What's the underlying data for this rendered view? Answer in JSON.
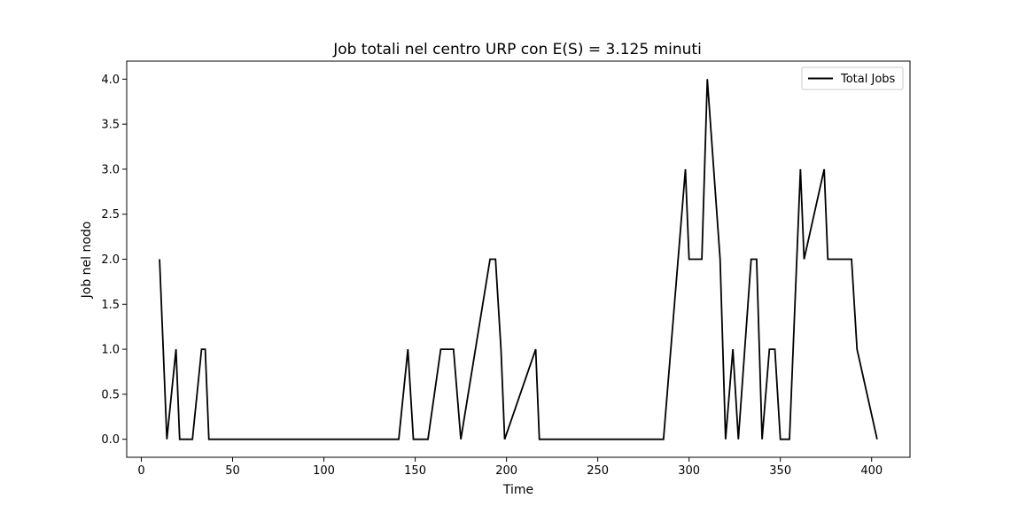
{
  "chart_data": {
    "type": "line",
    "title": "Job totali nel centro URP con E(S) = 3.125 minuti",
    "xlabel": "Time",
    "ylabel": "Job nel nodo",
    "xlim": [
      -8,
      421
    ],
    "ylim": [
      -0.2,
      4.2
    ],
    "xticks": [
      0,
      50,
      100,
      150,
      200,
      250,
      300,
      350,
      400
    ],
    "yticks": [
      0.0,
      0.5,
      1.0,
      1.5,
      2.0,
      2.5,
      3.0,
      3.5,
      4.0
    ],
    "xtick_labels": [
      "0",
      "50",
      "100",
      "150",
      "200",
      "250",
      "300",
      "350",
      "400"
    ],
    "ytick_labels": [
      "0.0",
      "0.5",
      "1.0",
      "1.5",
      "2.0",
      "2.5",
      "3.0",
      "3.5",
      "4.0"
    ],
    "grid": false,
    "legend_position": "top-right",
    "series": [
      {
        "name": "Total Jobs",
        "color": "#000000",
        "x": [
          10,
          14,
          19,
          21,
          28,
          33,
          35,
          37,
          141,
          146,
          149,
          157,
          164,
          171,
          175,
          191,
          194,
          197,
          199,
          216,
          218,
          286,
          298,
          300,
          307,
          310,
          317,
          320,
          324,
          327,
          334,
          337,
          340,
          344,
          347,
          350,
          355,
          361,
          363,
          374,
          376,
          389,
          392,
          403
        ],
        "y": [
          2,
          0,
          1,
          0,
          0,
          1,
          1,
          0,
          0,
          1,
          0,
          0,
          1,
          1,
          0,
          2,
          2,
          1,
          0,
          1,
          0,
          0,
          3,
          2,
          2,
          4,
          2,
          0,
          1,
          0,
          2,
          2,
          0,
          1,
          1,
          0,
          0,
          3,
          2,
          3,
          2,
          2,
          1,
          0
        ]
      }
    ]
  }
}
